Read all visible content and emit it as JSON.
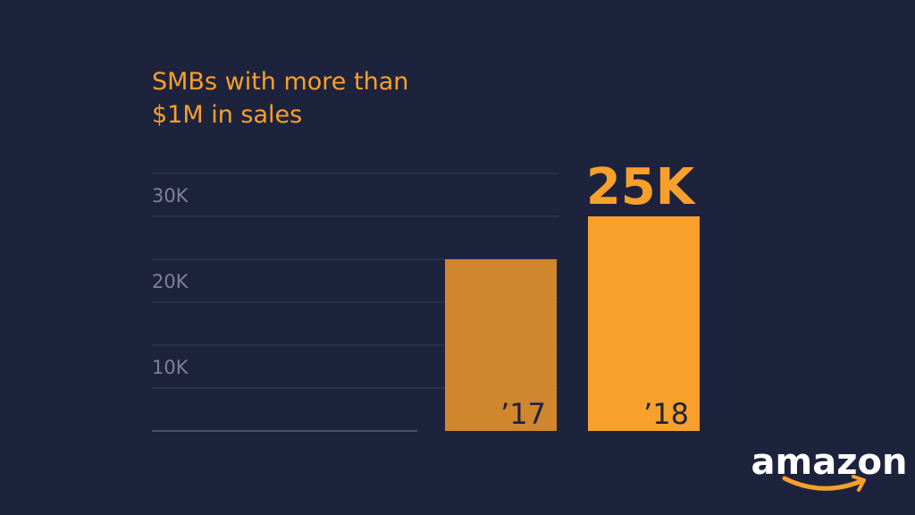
{
  "chart_data": {
    "type": "bar",
    "title": "SMBs with more than $1M in sales",
    "title_lines": [
      "SMBs with more than",
      "$1M in sales"
    ],
    "categories": [
      "’17",
      "’18"
    ],
    "values": [
      20000,
      25000
    ],
    "data_labels": [
      "",
      "25K"
    ],
    "ytick_values": [
      10000,
      20000,
      30000
    ],
    "ytick_labels": [
      "10K",
      "20K",
      "30K"
    ],
    "ylim": [
      0,
      30000
    ],
    "xlabel": "",
    "ylabel": "",
    "grid": true,
    "bar_colors": [
      "#cf862d",
      "#f7a12c"
    ],
    "value_label_color": "#f7a12c"
  },
  "brand": {
    "logo_text": "amazon"
  }
}
